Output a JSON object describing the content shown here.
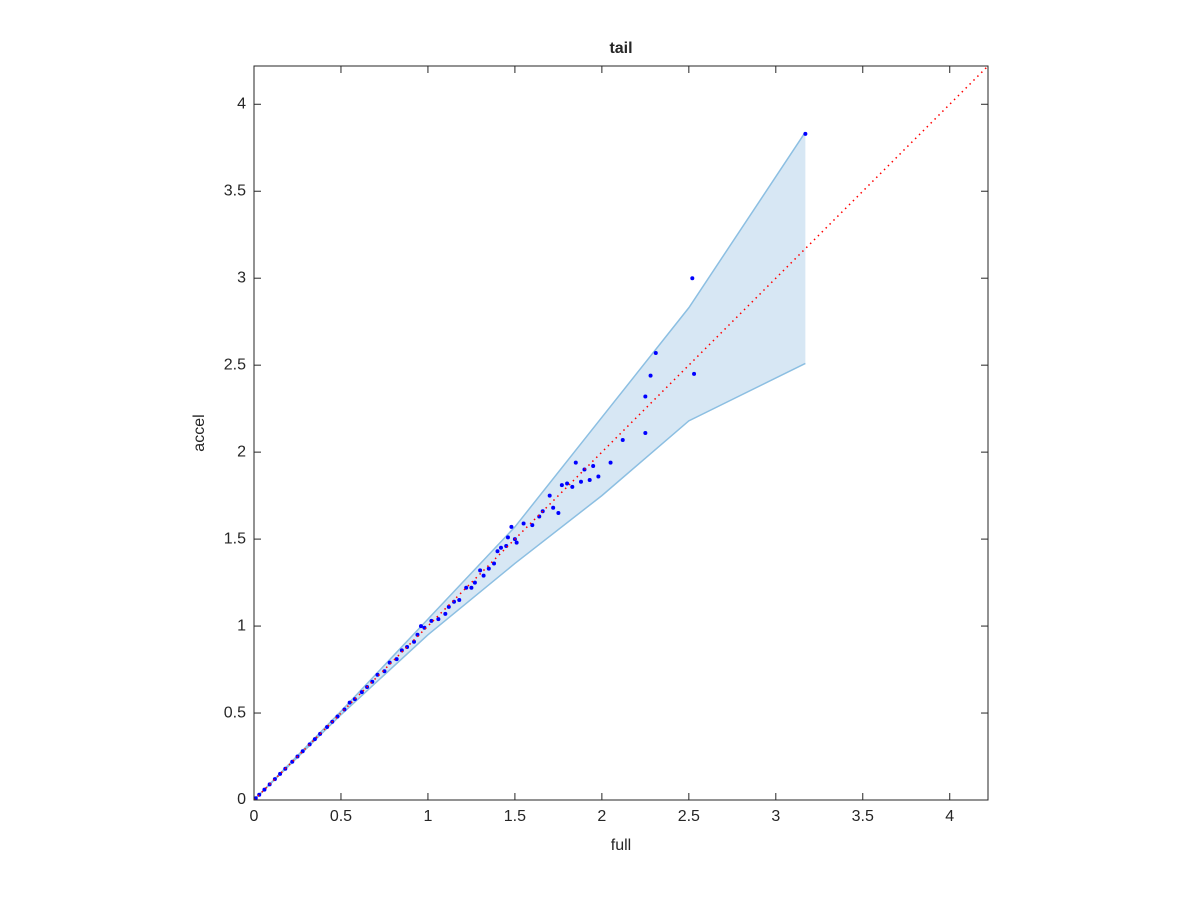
{
  "chart_data": {
    "type": "scatter",
    "title": "tail",
    "x_label": "full",
    "y_label": "accel",
    "xlim": [
      0,
      4.22
    ],
    "ylim": [
      0,
      4.22
    ],
    "xticks": [
      0,
      0.5,
      1,
      1.5,
      2,
      2.5,
      3,
      3.5,
      4
    ],
    "yticks": [
      0,
      0.5,
      1,
      1.5,
      2,
      2.5,
      3,
      3.5,
      4
    ],
    "color": "#0000ff",
    "x": [
      3.17,
      2.52,
      2.31,
      2.28,
      2.53,
      2.25,
      2.25,
      2.12,
      2.05,
      1.98,
      1.95,
      1.93,
      1.9,
      1.88,
      1.85,
      1.83,
      1.8,
      1.77,
      1.75,
      1.72,
      1.7,
      1.66,
      1.64,
      1.6,
      1.55,
      1.51,
      1.5,
      1.48,
      1.46,
      1.45,
      1.42,
      1.4,
      1.38,
      1.35,
      1.32,
      1.3,
      1.27,
      1.25,
      1.22,
      1.18,
      1.15,
      1.12,
      1.1,
      1.06,
      1.02,
      0.98,
      0.96,
      0.94,
      0.92,
      0.88,
      0.85,
      0.82,
      0.78,
      0.75,
      0.71,
      0.68,
      0.65,
      0.62,
      0.58,
      0.55,
      0.52,
      0.48,
      0.45,
      0.42,
      0.38,
      0.35,
      0.32,
      0.28,
      0.25,
      0.22,
      0.18,
      0.15,
      0.12,
      0.09,
      0.06,
      0.03,
      0.01
    ],
    "values": [
      3.83,
      3.0,
      2.57,
      2.44,
      2.45,
      2.32,
      2.11,
      2.07,
      1.94,
      1.86,
      1.92,
      1.84,
      1.9,
      1.83,
      1.94,
      1.8,
      1.82,
      1.81,
      1.65,
      1.68,
      1.75,
      1.66,
      1.63,
      1.58,
      1.59,
      1.48,
      1.5,
      1.57,
      1.51,
      1.46,
      1.45,
      1.43,
      1.36,
      1.33,
      1.29,
      1.32,
      1.25,
      1.22,
      1.22,
      1.15,
      1.14,
      1.11,
      1.07,
      1.04,
      1.03,
      0.99,
      1.0,
      0.95,
      0.91,
      0.88,
      0.86,
      0.81,
      0.79,
      0.74,
      0.72,
      0.68,
      0.65,
      0.62,
      0.58,
      0.56,
      0.52,
      0.48,
      0.45,
      0.42,
      0.38,
      0.35,
      0.32,
      0.28,
      0.25,
      0.22,
      0.18,
      0.15,
      0.12,
      0.09,
      0.06,
      0.03,
      0.01
    ],
    "band": {
      "x": [
        0,
        0.5,
        1,
        1.5,
        2,
        2.5,
        3.17
      ],
      "upper": [
        0,
        0.51,
        1.04,
        1.57,
        2.2,
        2.83,
        3.84
      ],
      "lower": [
        0,
        0.49,
        0.95,
        1.36,
        1.75,
        2.18,
        2.51
      ],
      "fill": "#d7e7f4",
      "stroke": "#8cbfe2"
    },
    "diagonal": {
      "x": [
        0,
        4.22
      ],
      "values": [
        0,
        4.22
      ],
      "color": "#ff0000"
    }
  }
}
